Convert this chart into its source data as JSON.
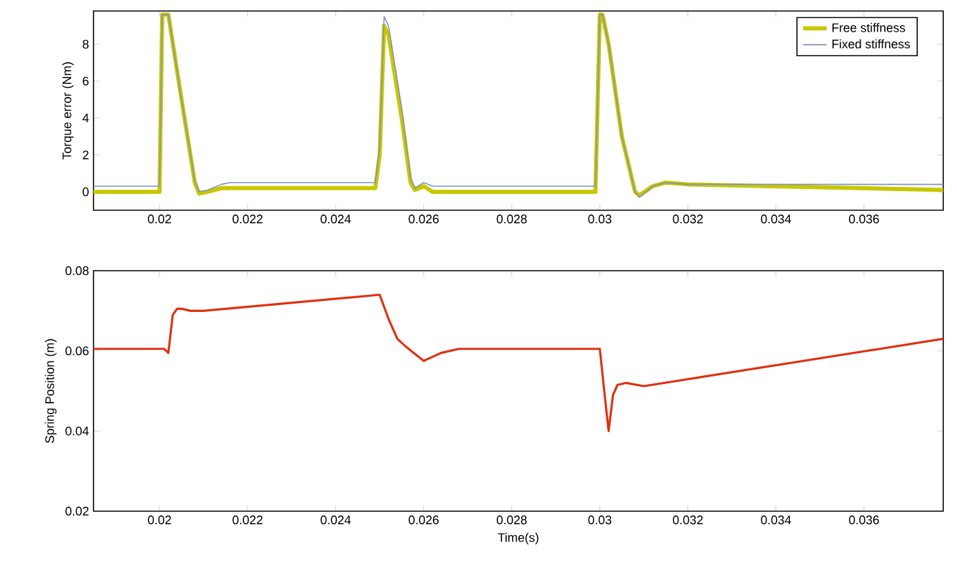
{
  "chart_data": [
    {
      "type": "line",
      "ylabel": "Torque error (Nm)",
      "xlim": [
        0.0185,
        0.0378
      ],
      "ylim": [
        -1,
        9.8
      ],
      "xticks": [
        0.02,
        0.022,
        0.024,
        0.026,
        0.028,
        0.03,
        0.032,
        0.034,
        0.036
      ],
      "yticks": [
        0,
        2,
        4,
        6,
        8
      ],
      "legend": "top right",
      "series": [
        {
          "name": "Free stiffness",
          "color": "#c8c800",
          "x": [
            0.0185,
            0.02,
            0.02006,
            0.0202,
            0.0205,
            0.0208,
            0.0209,
            0.0211,
            0.0214,
            0.0218,
            0.0249,
            0.025,
            0.0251,
            0.0252,
            0.0255,
            0.0257,
            0.0258,
            0.026,
            0.0262,
            0.0265,
            0.0299,
            0.03,
            0.03006,
            0.0302,
            0.0305,
            0.0308,
            0.0309,
            0.0312,
            0.0315,
            0.032,
            0.0378
          ],
          "values": [
            0.0,
            0.0,
            9.6,
            9.6,
            5.0,
            0.5,
            -0.1,
            0.0,
            0.2,
            0.2,
            0.2,
            2.0,
            9.0,
            8.5,
            4.0,
            0.5,
            0.1,
            0.3,
            0.0,
            0.0,
            0.0,
            9.6,
            9.6,
            8.0,
            3.0,
            0.0,
            -0.2,
            0.3,
            0.5,
            0.4,
            0.1
          ]
        },
        {
          "name": "Fixed stiffness",
          "color": "#8090c0",
          "x": [
            0.0185,
            0.02,
            0.02006,
            0.0202,
            0.0205,
            0.0208,
            0.0209,
            0.0211,
            0.0214,
            0.0216,
            0.0249,
            0.025,
            0.0251,
            0.0252,
            0.0255,
            0.0257,
            0.0258,
            0.026,
            0.0262,
            0.0265,
            0.0299,
            0.03,
            0.03006,
            0.0302,
            0.0305,
            0.0308,
            0.0309,
            0.0312,
            0.0315,
            0.032,
            0.0378
          ],
          "values": [
            0.3,
            0.3,
            9.6,
            9.6,
            5.0,
            0.6,
            0.0,
            0.1,
            0.4,
            0.5,
            0.5,
            2.5,
            9.5,
            9.0,
            4.5,
            0.8,
            0.2,
            0.5,
            0.3,
            0.3,
            0.3,
            9.6,
            9.6,
            8.0,
            3.0,
            0.0,
            -0.3,
            0.3,
            0.5,
            0.4,
            0.4
          ]
        }
      ]
    },
    {
      "type": "line",
      "xlabel": "Time(s)",
      "ylabel": "Spring Position (m)",
      "xlim": [
        0.0185,
        0.0378
      ],
      "ylim": [
        0.02,
        0.08
      ],
      "xticks": [
        0.02,
        0.022,
        0.024,
        0.026,
        0.028,
        0.03,
        0.032,
        0.034,
        0.036
      ],
      "yticks": [
        0.02,
        0.04,
        0.06,
        0.08
      ],
      "series": [
        {
          "color": "#e03010",
          "x": [
            0.0185,
            0.0201,
            0.0202,
            0.0203,
            0.0204,
            0.0205,
            0.0207,
            0.021,
            0.025,
            0.0252,
            0.0254,
            0.0256,
            0.026,
            0.0262,
            0.0264,
            0.0268,
            0.03,
            0.0301,
            0.0302,
            0.0303,
            0.0304,
            0.0306,
            0.031,
            0.0378
          ],
          "values": [
            0.0605,
            0.0605,
            0.0595,
            0.069,
            0.0705,
            0.0705,
            0.07,
            0.07,
            0.074,
            0.068,
            0.063,
            0.061,
            0.0575,
            0.0585,
            0.0595,
            0.0605,
            0.0605,
            0.05,
            0.04,
            0.049,
            0.0515,
            0.052,
            0.0512,
            0.063
          ]
        }
      ]
    }
  ]
}
